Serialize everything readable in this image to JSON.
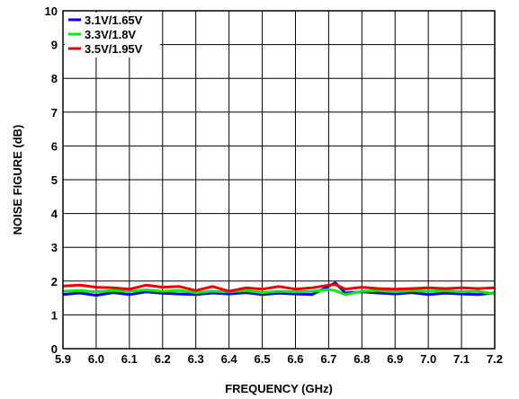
{
  "chart_data": {
    "type": "line",
    "title": "",
    "xlabel": "FREQUENCY (GHz)",
    "ylabel": "NOISE FIGURE (dB)",
    "xlim": [
      5.9,
      7.2
    ],
    "ylim": [
      0,
      10
    ],
    "x_ticks": [
      "5.9",
      "6.0",
      "6.1",
      "6.2",
      "6.3",
      "6.4",
      "6.5",
      "6.6",
      "6.7",
      "6.8",
      "6.9",
      "7.0",
      "7.1",
      "7.2"
    ],
    "y_ticks": [
      "0",
      "1",
      "2",
      "3",
      "4",
      "5",
      "6",
      "7",
      "8",
      "9",
      "10"
    ],
    "grid": true,
    "legend_position": "top-left",
    "series": [
      {
        "name": "3.1V/1.65V",
        "color": "#0000ff",
        "x": [
          5.9,
          5.95,
          6.0,
          6.05,
          6.1,
          6.15,
          6.2,
          6.25,
          6.3,
          6.35,
          6.4,
          6.45,
          6.5,
          6.55,
          6.6,
          6.65,
          6.7,
          6.72,
          6.75,
          6.8,
          6.85,
          6.9,
          6.95,
          7.0,
          7.05,
          7.1,
          7.15,
          7.2
        ],
        "y": [
          1.6,
          1.65,
          1.58,
          1.66,
          1.6,
          1.68,
          1.64,
          1.62,
          1.6,
          1.65,
          1.62,
          1.66,
          1.6,
          1.64,
          1.62,
          1.6,
          1.85,
          1.95,
          1.65,
          1.68,
          1.65,
          1.62,
          1.66,
          1.6,
          1.64,
          1.62,
          1.6,
          1.65
        ]
      },
      {
        "name": "3.3V/1.8V",
        "color": "#00ee00",
        "x": [
          5.9,
          5.95,
          6.0,
          6.05,
          6.1,
          6.15,
          6.2,
          6.25,
          6.3,
          6.35,
          6.4,
          6.45,
          6.5,
          6.55,
          6.6,
          6.65,
          6.7,
          6.72,
          6.75,
          6.8,
          6.85,
          6.9,
          6.95,
          7.0,
          7.05,
          7.1,
          7.15,
          7.2
        ],
        "y": [
          1.7,
          1.72,
          1.68,
          1.72,
          1.7,
          1.74,
          1.7,
          1.72,
          1.66,
          1.7,
          1.68,
          1.72,
          1.66,
          1.7,
          1.68,
          1.7,
          1.75,
          1.72,
          1.6,
          1.7,
          1.72,
          1.68,
          1.72,
          1.7,
          1.72,
          1.68,
          1.7,
          1.62
        ]
      },
      {
        "name": "3.5V/1.95V",
        "color": "#ee0000",
        "x": [
          5.9,
          5.95,
          6.0,
          6.05,
          6.1,
          6.15,
          6.2,
          6.25,
          6.3,
          6.35,
          6.4,
          6.45,
          6.5,
          6.55,
          6.6,
          6.65,
          6.7,
          6.72,
          6.75,
          6.8,
          6.85,
          6.9,
          6.95,
          7.0,
          7.05,
          7.1,
          7.15,
          7.2
        ],
        "y": [
          1.85,
          1.88,
          1.82,
          1.8,
          1.76,
          1.88,
          1.82,
          1.84,
          1.72,
          1.84,
          1.7,
          1.8,
          1.76,
          1.84,
          1.76,
          1.8,
          1.88,
          1.9,
          1.76,
          1.82,
          1.78,
          1.76,
          1.78,
          1.8,
          1.78,
          1.8,
          1.78,
          1.8
        ]
      }
    ]
  }
}
